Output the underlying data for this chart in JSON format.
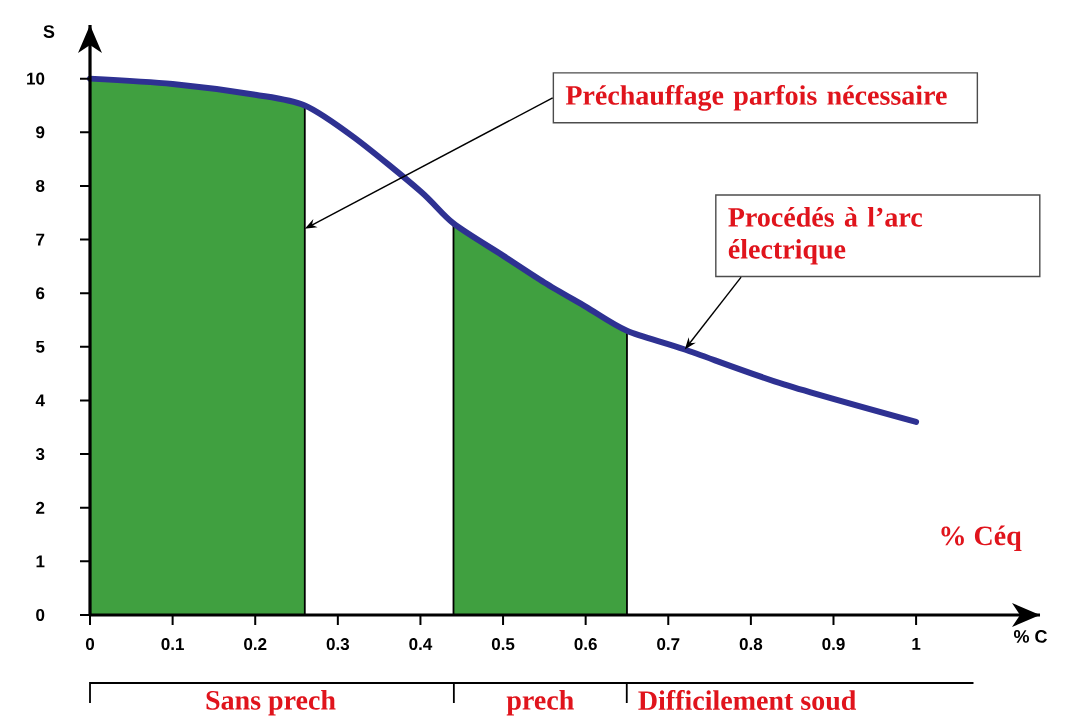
{
  "chart_data": {
    "type": "line",
    "xlabel": "% C",
    "ylabel": "S",
    "xlim": [
      0,
      1.15
    ],
    "ylim": [
      0,
      11
    ],
    "xticks": [
      0,
      0.1,
      0.2,
      0.3,
      0.4,
      0.5,
      0.6,
      0.7,
      0.8,
      0.9,
      1
    ],
    "yticks": [
      0,
      1,
      2,
      3,
      4,
      5,
      6,
      7,
      8,
      9,
      10
    ],
    "series": [
      {
        "type": "area",
        "color": "#40a040",
        "x": [
          0,
          0.1,
          0.2,
          0.26
        ],
        "values": [
          10,
          9.9,
          9.7,
          9.5
        ]
      },
      {
        "type": "area",
        "color": "#40a040",
        "x": [
          0.44,
          0.5,
          0.55,
          0.6,
          0.65
        ],
        "values": [
          7.3,
          6.7,
          6.2,
          5.75,
          5.3
        ]
      },
      {
        "color": "#2e3192",
        "x": [
          0,
          0.1,
          0.2,
          0.26,
          0.32,
          0.4,
          0.44,
          0.5,
          0.55,
          0.6,
          0.65,
          0.72,
          0.84,
          1.0
        ],
        "values": [
          10,
          9.9,
          9.7,
          9.5,
          8.9,
          7.9,
          7.3,
          6.7,
          6.2,
          5.75,
          5.3,
          4.95,
          4.3,
          3.6
        ]
      }
    ],
    "annotations": [
      {
        "text": "Préchauffage parfois nécessaire",
        "x": 0.26,
        "y": 7.2
      },
      {
        "text": "Procédés à l’arc électrique",
        "x": 0.72,
        "y": 4.95
      },
      "% Céq",
      "Sans prech",
      "prech",
      "Difficilement soud"
    ]
  }
}
